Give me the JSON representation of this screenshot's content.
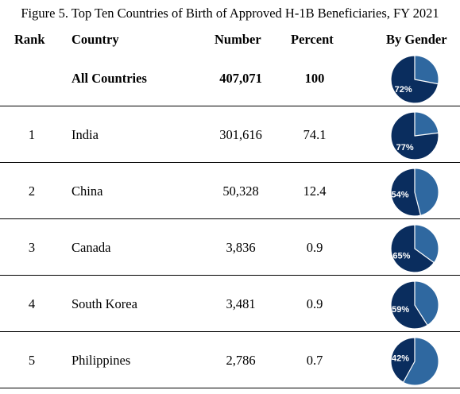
{
  "title": "Figure 5. Top Ten Countries of Birth of Approved H-1B Beneficiaries, FY 2021",
  "columns": {
    "rank": "Rank",
    "country": "Country",
    "number": "Number",
    "percent": "Percent",
    "gender": "By Gender"
  },
  "colors": {
    "male": "#0a2d5e",
    "female": "#2f68a0",
    "outline": "#ffffff",
    "label": "#ffffff"
  },
  "rows": [
    {
      "rank": "",
      "country": "All Countries",
      "number": "407,071",
      "percent": "100",
      "male_pct": 72,
      "label": "72%",
      "bold": true
    },
    {
      "rank": "1",
      "country": "India",
      "number": "301,616",
      "percent": "74.1",
      "male_pct": 77,
      "label": "77%",
      "bold": false
    },
    {
      "rank": "2",
      "country": "China",
      "number": "50,328",
      "percent": "12.4",
      "male_pct": 54,
      "label": "54%",
      "bold": false
    },
    {
      "rank": "3",
      "country": "Canada",
      "number": "3,836",
      "percent": "0.9",
      "male_pct": 65,
      "label": "65%",
      "bold": false
    },
    {
      "rank": "4",
      "country": "South Korea",
      "number": "3,481",
      "percent": "0.9",
      "male_pct": 59,
      "label": "59%",
      "bold": false
    },
    {
      "rank": "5",
      "country": "Philippines",
      "number": "2,786",
      "percent": "0.7",
      "male_pct": 42,
      "label": "42%",
      "bold": false
    }
  ]
}
